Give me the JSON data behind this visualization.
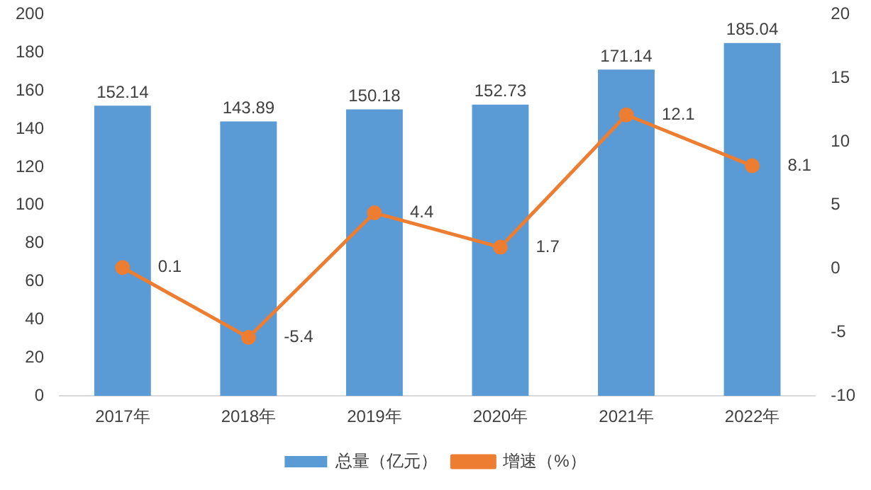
{
  "chart_data": {
    "type": "bar",
    "categories": [
      "2017年",
      "2018年",
      "2019年",
      "2020年",
      "2021年",
      "2022年"
    ],
    "series": [
      {
        "name": "总量（亿元）",
        "color": "#5b9bd5",
        "values": [
          152.14,
          143.89,
          150.18,
          152.73,
          171.14,
          185.04
        ]
      },
      {
        "name": "增速（%）",
        "type": "line",
        "axis": "y2",
        "color": "#ed7d31",
        "values": [
          0.1,
          -5.4,
          4.4,
          1.7,
          12.1,
          8.1
        ]
      }
    ],
    "ylim": [
      0,
      200
    ],
    "yticks": [
      0,
      20,
      40,
      60,
      80,
      100,
      120,
      140,
      160,
      180,
      200
    ],
    "y2lim": [
      -10,
      20
    ],
    "y2ticks": [
      -10,
      -5,
      0,
      5,
      10,
      15,
      20
    ],
    "data_labels": true,
    "legend": "bottom",
    "grid": false,
    "marker": "circle",
    "line_style": "solid"
  }
}
